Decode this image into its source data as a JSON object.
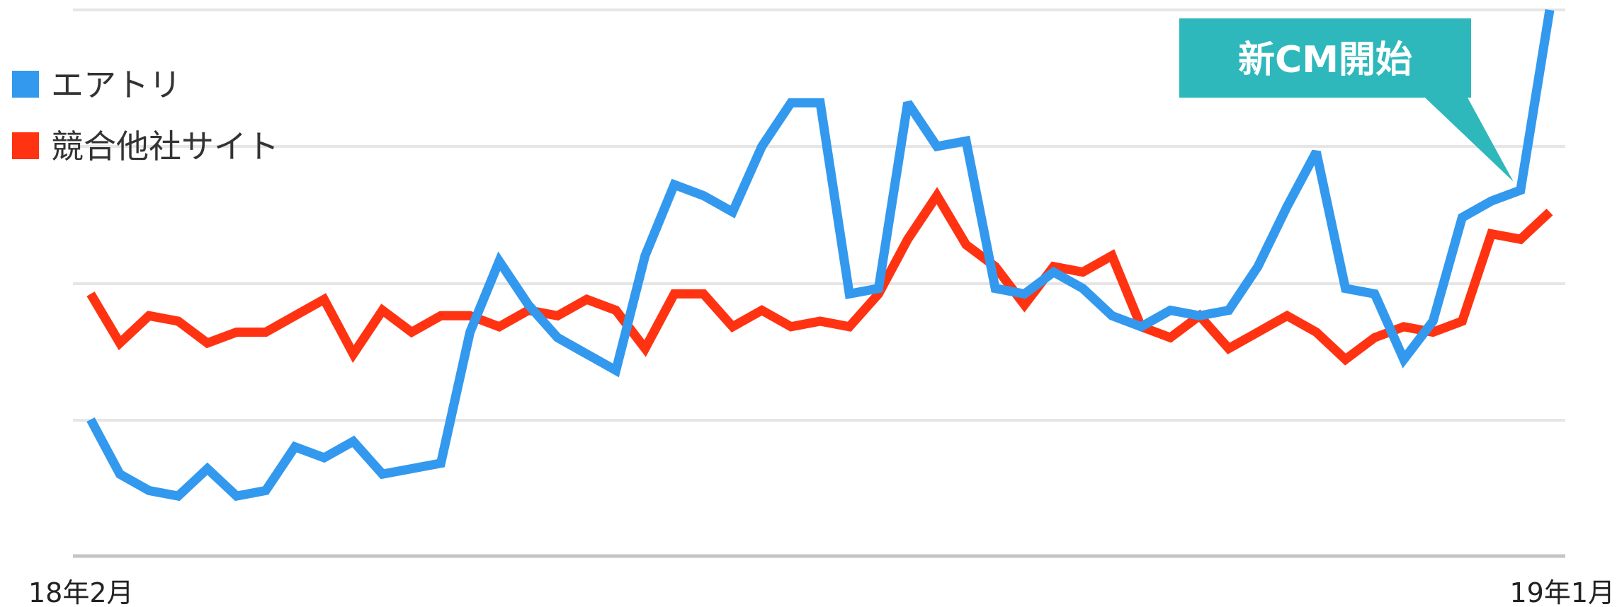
{
  "chart_data": {
    "type": "line",
    "grid": true,
    "legend_position": "top-left",
    "y_range": [
      0,
      100
    ],
    "x_tick_labels": [
      "18年2月",
      "19年1月"
    ],
    "series": [
      {
        "name": "エアトリ",
        "color": "#3399ee",
        "values": [
          25,
          15,
          12,
          11,
          16,
          11,
          12,
          20,
          18,
          21,
          15,
          16,
          17,
          41,
          54,
          46,
          40,
          37,
          34,
          55,
          68,
          66,
          63,
          75,
          83,
          83,
          48,
          49,
          83,
          75,
          76,
          49,
          48,
          52,
          49,
          44,
          42,
          45,
          44,
          45,
          53,
          64,
          74,
          49,
          48,
          36,
          43,
          62,
          65,
          67,
          100
        ]
      },
      {
        "name": "競合他社サイト",
        "color": "#ff3311",
        "values": [
          48,
          39,
          44,
          43,
          39,
          41,
          41,
          44,
          47,
          37,
          45,
          41,
          44,
          44,
          42,
          45,
          44,
          47,
          45,
          38,
          48,
          48,
          42,
          45,
          42,
          43,
          42,
          48,
          58,
          66,
          57,
          53,
          46,
          53,
          52,
          55,
          42,
          40,
          44,
          38,
          41,
          44,
          41,
          36,
          40,
          42,
          41,
          43,
          59,
          58,
          63
        ]
      }
    ],
    "annotation": {
      "text": "新CM開始",
      "point_index": 49,
      "series": 0,
      "color": "#2eb8bc"
    }
  }
}
